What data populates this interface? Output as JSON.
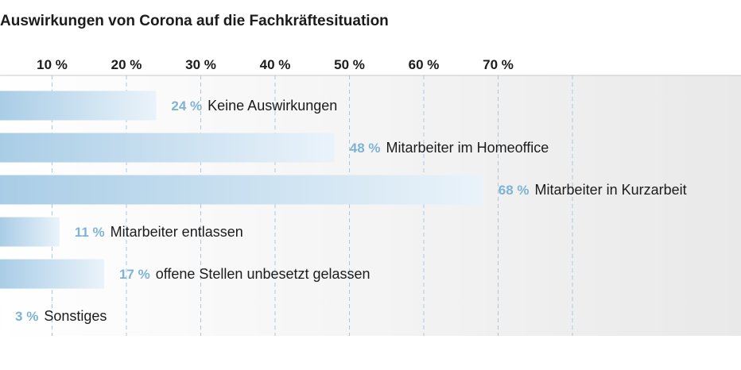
{
  "chart_data": {
    "type": "bar",
    "orientation": "horizontal",
    "title": "Auswirkungen von Corona auf die Fachkräftesituation",
    "categories": [
      "Keine Auswirkungen",
      "Mitarbeiter im Homeoffice",
      "Mitarbeiter in Kurzarbeit",
      "Mitarbeiter entlassen",
      "offene Stellen unbesetzt gelassen",
      "Sonstiges"
    ],
    "values": [
      24,
      48,
      68,
      11,
      17,
      3
    ],
    "value_labels": [
      "24 %",
      "48 %",
      "68 %",
      "11 %",
      "17 %",
      "3 %"
    ],
    "x_ticks": [
      10,
      20,
      30,
      40,
      50,
      60,
      70
    ],
    "x_tick_labels": [
      "10 %",
      "20 %",
      "30 %",
      "40 %",
      "50 %",
      "60 %",
      "70 %"
    ],
    "xlim": [
      0,
      80
    ],
    "grid": "vertical dashed",
    "colors": {
      "bar_start": "#a9cde6",
      "bar_end": "#eaf3fa",
      "value_label": "#7fb3d5",
      "grid": "#a8c8e2",
      "plot_bg_end": "#e9e9e9",
      "axis_line": "#c8c8c8"
    }
  }
}
